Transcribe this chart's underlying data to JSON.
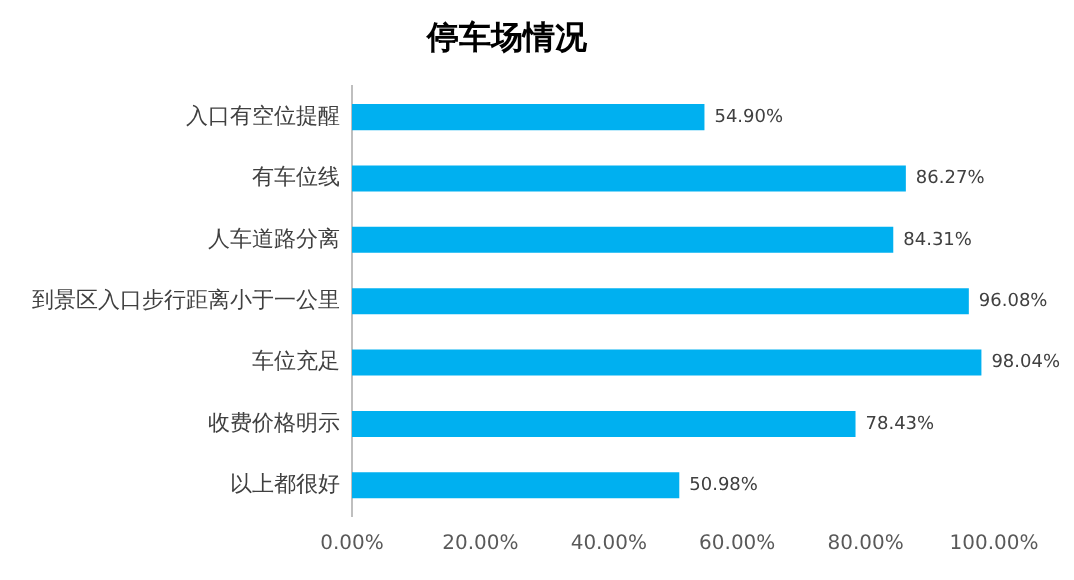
{
  "chart_data": {
    "type": "bar",
    "orientation": "horizontal",
    "title": "停车场情况",
    "categories": [
      "入口有空位提醒",
      "有车位线",
      "人车道路分离",
      "到景区入口步行距离小于一公里",
      "车位充足",
      "收费价格明示",
      "以上都很好"
    ],
    "values": [
      54.9,
      86.27,
      84.31,
      96.08,
      98.04,
      78.43,
      50.98
    ],
    "value_labels": [
      "54.90%",
      "86.27%",
      "84.31%",
      "96.08%",
      "98.04%",
      "78.43%",
      "50.98%"
    ],
    "color": "#00b0f0",
    "xlim": [
      0,
      100
    ],
    "xticks": [
      {
        "value": 0,
        "label": "0.00%"
      },
      {
        "value": 20,
        "label": "20.00%"
      },
      {
        "value": 40,
        "label": "40.00%"
      },
      {
        "value": 60,
        "label": "60.00%"
      },
      {
        "value": 80,
        "label": "80.00%"
      },
      {
        "value": 100,
        "label": "100.00%"
      }
    ],
    "grid": false,
    "legend": false
  }
}
